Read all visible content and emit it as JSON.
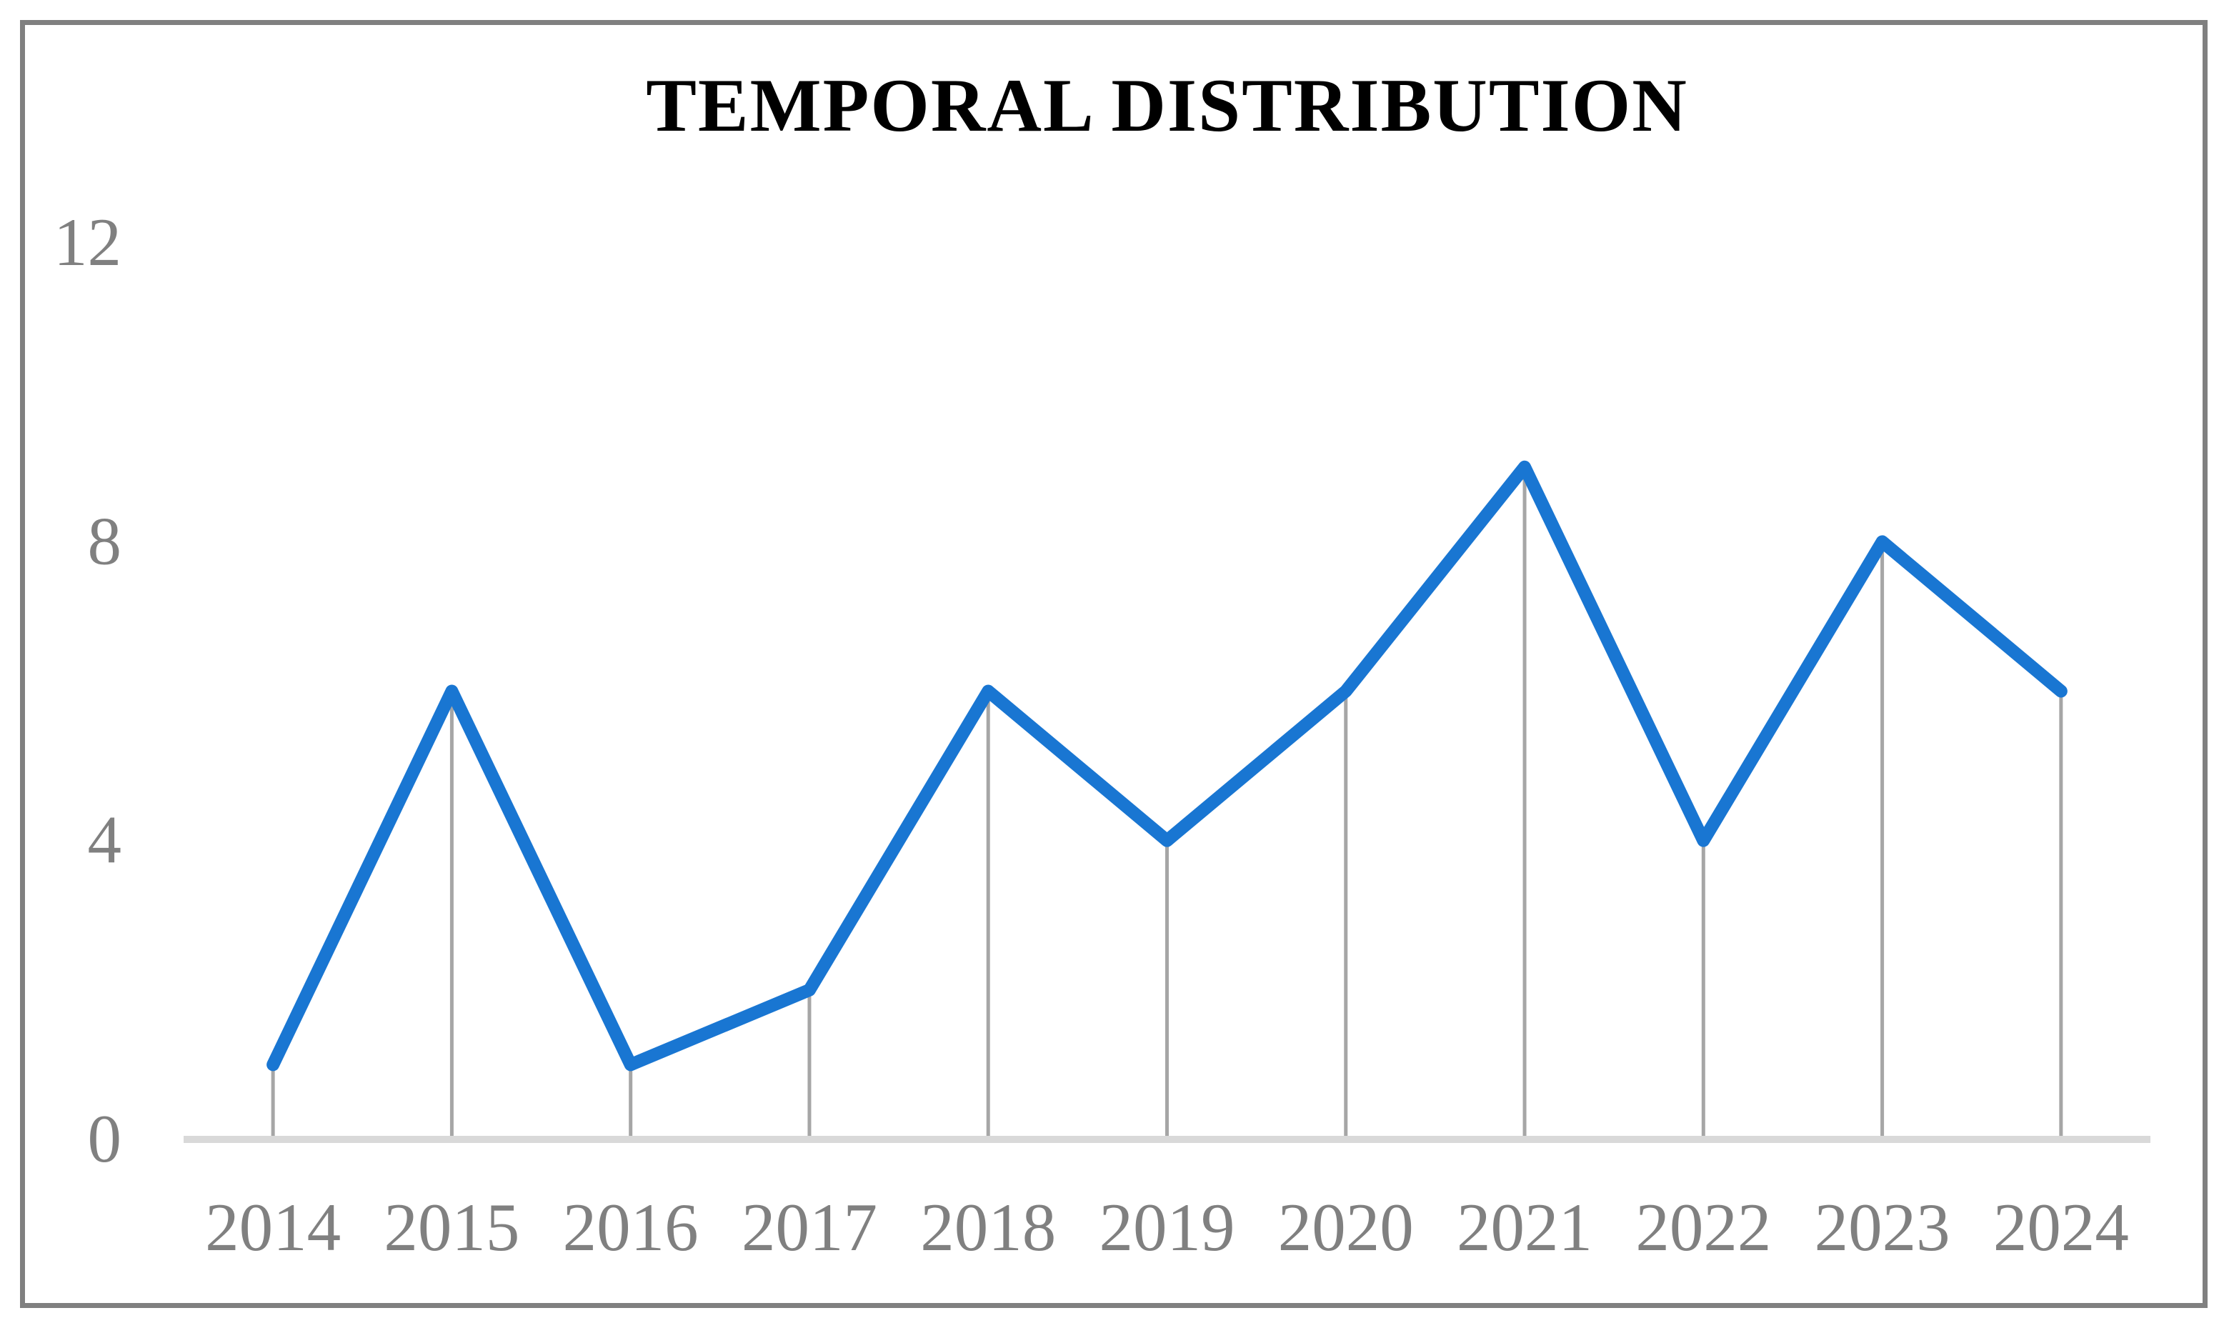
{
  "chart_data": {
    "type": "line",
    "title": "TEMPORAL DISTRIBUTION",
    "categories": [
      "2014",
      "2015",
      "2016",
      "2017",
      "2018",
      "2019",
      "2020",
      "2021",
      "2022",
      "2023",
      "2024"
    ],
    "values": [
      1,
      6,
      1,
      2,
      6,
      4,
      6,
      9,
      4,
      8,
      6
    ],
    "xlabel": "",
    "ylabel": "",
    "ylim": [
      0,
      12
    ],
    "yticks": [
      0,
      4,
      8,
      12
    ],
    "grid": false,
    "legend_position": "none",
    "drop_lines": true,
    "colors": {
      "line": "#1976D2",
      "drop_line": "#A6A6A6",
      "axis_line": "#D9D9D9",
      "tick_label": "#808080",
      "title": "#000000",
      "frame_border": "#808080",
      "background": "#FFFFFF"
    }
  }
}
